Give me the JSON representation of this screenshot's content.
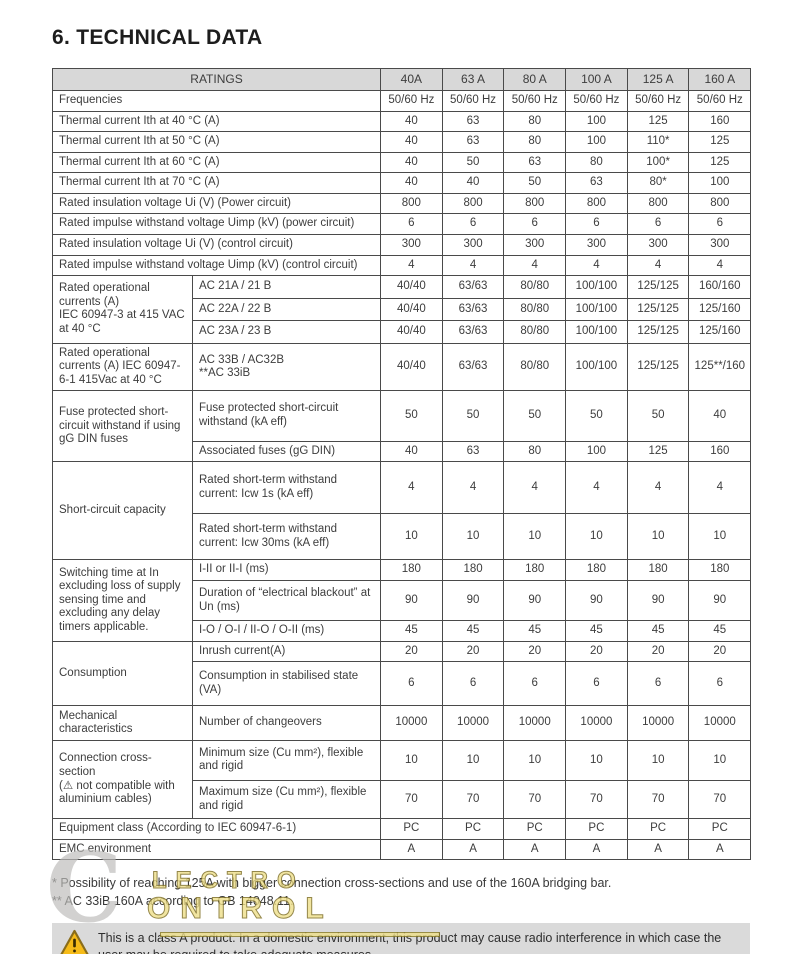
{
  "page": {
    "title": "6. TECHNICAL DATA"
  },
  "table": {
    "ratings_label": "RATINGS",
    "columns": [
      "40A",
      "63 A",
      "80 A",
      "100 A",
      "125 A",
      "160 A"
    ],
    "rows": [
      {
        "label": "Frequencies",
        "values": [
          "50/60 Hz",
          "50/60 Hz",
          "50/60 Hz",
          "50/60 Hz",
          "50/60 Hz",
          "50/60 Hz"
        ]
      },
      {
        "label": "Thermal current Ith at 40 °C (A)",
        "values": [
          "40",
          "63",
          "80",
          "100",
          "125",
          "160"
        ]
      },
      {
        "label": "Thermal current Ith at 50 °C (A)",
        "values": [
          "40",
          "63",
          "80",
          "100",
          "110*",
          "125"
        ]
      },
      {
        "label": "Thermal current Ith at 60 °C (A)",
        "values": [
          "40",
          "50",
          "63",
          "80",
          "100*",
          "125"
        ]
      },
      {
        "label": "Thermal current Ith at 70 °C (A)",
        "values": [
          "40",
          "40",
          "50",
          "63",
          "80*",
          "100"
        ]
      },
      {
        "label": "Rated insulation voltage Ui (V) (Power circuit)",
        "values": [
          "800",
          "800",
          "800",
          "800",
          "800",
          "800"
        ]
      },
      {
        "label": "Rated impulse withstand voltage Uimp (kV) (power circuit)",
        "values": [
          "6",
          "6",
          "6",
          "6",
          "6",
          "6"
        ]
      },
      {
        "label": "Rated insulation voltage Ui (V) (control circuit)",
        "values": [
          "300",
          "300",
          "300",
          "300",
          "300",
          "300"
        ]
      },
      {
        "label": "Rated impulse withstand voltage Uimp (kV) (control circuit)",
        "values": [
          "4",
          "4",
          "4",
          "4",
          "4",
          "4"
        ]
      },
      {
        "group": "Rated operational currents (A)\nIEC 60947-3 at 415 VAC\nat 40 °C",
        "rowspan": 3,
        "sub": "AC 21A / 21 B",
        "values": [
          "40/40",
          "63/63",
          "80/80",
          "100/100",
          "125/125",
          "160/160"
        ]
      },
      {
        "sub": "AC 22A / 22 B",
        "values": [
          "40/40",
          "63/63",
          "80/80",
          "100/100",
          "125/125",
          "125/160"
        ]
      },
      {
        "sub": "AC 23A / 23 B",
        "values": [
          "40/40",
          "63/63",
          "80/80",
          "100/100",
          "125/125",
          "125/160"
        ]
      },
      {
        "group": "Rated operational currents (A) IEC 60947-6-1 415Vac at 40 °C",
        "rowspan": 1,
        "sub": "AC 33B / AC32B\n**AC 33iB",
        "values": [
          "40/40",
          "63/63",
          "80/80",
          "100/100",
          "125/125",
          "125**/160"
        ]
      },
      {
        "group": "Fuse protected short-circuit withstand if using gG DIN fuses",
        "rowspan": 2,
        "sub": "Fuse protected short-circuit withstand (kA eff)",
        "values": [
          "50",
          "50",
          "50",
          "50",
          "50",
          "40"
        ]
      },
      {
        "sub": "Associated fuses (gG DIN)",
        "values": [
          "40",
          "63",
          "80",
          "100",
          "125",
          "160"
        ]
      },
      {
        "group": "Short-circuit capacity",
        "rowspan": 2,
        "sub": "Rated short-term withstand current: Icw 1s (kA eff)",
        "values": [
          "4",
          "4",
          "4",
          "4",
          "4",
          "4"
        ]
      },
      {
        "sub": "Rated short-term withstand current: Icw 30ms (kA eff)",
        "values": [
          "10",
          "10",
          "10",
          "10",
          "10",
          "10"
        ]
      },
      {
        "group": "Switching time at In excluding loss of supply sensing time and excluding any delay timers applicable.",
        "rowspan": 3,
        "sub": "I-II or II-I (ms)",
        "values": [
          "180",
          "180",
          "180",
          "180",
          "180",
          "180"
        ]
      },
      {
        "sub": "Duration of “electrical blackout” at Un (ms)",
        "values": [
          "90",
          "90",
          "90",
          "90",
          "90",
          "90"
        ]
      },
      {
        "sub": "I-O / O-I / II-O / O-II (ms)",
        "values": [
          "45",
          "45",
          "45",
          "45",
          "45",
          "45"
        ]
      },
      {
        "group": "Consumption",
        "rowspan": 2,
        "sub": "Inrush current(A)",
        "values": [
          "20",
          "20",
          "20",
          "20",
          "20",
          "20"
        ]
      },
      {
        "sub": "Consumption in stabilised state (VA)",
        "values": [
          "6",
          "6",
          "6",
          "6",
          "6",
          "6"
        ]
      },
      {
        "group": "Mechanical characteristics",
        "rowspan": 1,
        "sub": "Number of changeovers",
        "values": [
          "10000",
          "10000",
          "10000",
          "10000",
          "10000",
          "10000"
        ]
      },
      {
        "group": "Connection cross-section\n(⚠ not compatible with aluminium cables)",
        "rowspan": 2,
        "sub": "Minimum size (Cu mm²), flexible and rigid",
        "values": [
          "10",
          "10",
          "10",
          "10",
          "10",
          "10"
        ]
      },
      {
        "sub": "Maximum size (Cu mm²), flexible and rigid",
        "values": [
          "70",
          "70",
          "70",
          "70",
          "70",
          "70"
        ]
      },
      {
        "label": "Equipment class (According to IEC 60947-6-1)",
        "values": [
          "PC",
          "PC",
          "PC",
          "PC",
          "PC",
          "PC"
        ]
      },
      {
        "label": "EMC environment",
        "values": [
          "A",
          "A",
          "A",
          "A",
          "A",
          "A"
        ]
      }
    ]
  },
  "footnotes": [
    "* Possibility of reaching 125A with bigger connection cross-sections and use of the 160A bridging bar.",
    "** AC 33iB 160A according to GB 14048.11."
  ],
  "warning": {
    "icon": "warning-triangle-icon",
    "text": "This is a class A product. In a domestic environment, this product may cause radio interference in which case the user may be required to take adequate measures."
  },
  "watermark": {
    "letter": "C",
    "line1": "LECTRO",
    "line2": "ONTROL"
  },
  "colors": {
    "header_bg": "#d8d8d8",
    "table_border": "#4a4a4a",
    "warning_bg": "#dadada",
    "triangle_fill": "#f6bb18",
    "triangle_stroke": "#8a6d1a",
    "watermark_yellow": "#eedf8a",
    "watermark_gray": "#bdbcba"
  }
}
